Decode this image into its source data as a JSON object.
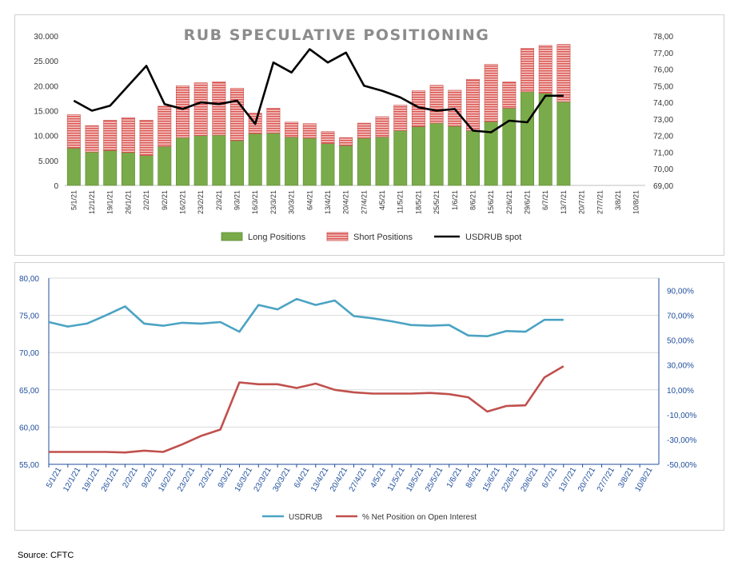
{
  "source": "Source: CFTC",
  "colors": {
    "long": "#7aab4a",
    "short": "#d9534f",
    "usdrub_spot": "#000000",
    "usdrub_blue": "#4ba3c3",
    "net_red": "#c0504d",
    "axis_blue": "#1f4e9c"
  },
  "chart_data": [
    {
      "type": "bar",
      "title": "RUB SPECULATIVE POSITIONING",
      "stacked": true,
      "categories": [
        "5/1/21",
        "12/1/21",
        "19/1/21",
        "26/1/21",
        "2/2/21",
        "9/2/21",
        "16/2/21",
        "23/2/21",
        "2/3/21",
        "9/3/21",
        "16/3/21",
        "23/3/21",
        "30/3/21",
        "6/4/21",
        "13/4/21",
        "20/4/21",
        "27/4/21",
        "4/5/21",
        "11/5/21",
        "18/5/21",
        "25/5/21",
        "1/6/21",
        "8/6/21",
        "15/6/21",
        "22/6/21",
        "29/6/21",
        "6/7/21",
        "13/7/21",
        "20/7/21",
        "27/7/21",
        "3/8/21",
        "10/8/21"
      ],
      "series": [
        {
          "name": "Long Positions",
          "kind": "bar",
          "values": [
            7500,
            6700,
            7000,
            6600,
            6000,
            7800,
            9600,
            10000,
            10100,
            9000,
            10400,
            10500,
            9700,
            9500,
            8400,
            8000,
            9500,
            9700,
            11000,
            11800,
            12500,
            11900,
            11000,
            12800,
            15500,
            18800,
            18500,
            16800,
            null,
            null,
            null,
            null
          ]
        },
        {
          "name": "Short Positions",
          "kind": "bar",
          "values": [
            6700,
            5300,
            6100,
            7000,
            7100,
            8100,
            10400,
            10600,
            10700,
            10500,
            4100,
            5000,
            3000,
            2900,
            2400,
            1600,
            3000,
            4100,
            5100,
            7200,
            7600,
            7200,
            10300,
            11500,
            5300,
            8700,
            9600,
            11500,
            null,
            null,
            null,
            null
          ]
        },
        {
          "name": "USDRUB spot",
          "kind": "line",
          "axis": "right",
          "values": [
            74.1,
            73.5,
            73.8,
            75.0,
            76.2,
            73.9,
            73.6,
            74.0,
            73.9,
            74.1,
            72.7,
            76.4,
            75.8,
            77.2,
            76.4,
            77.0,
            75.0,
            74.7,
            74.3,
            73.7,
            73.5,
            73.6,
            72.3,
            72.2,
            72.9,
            72.8,
            74.4,
            74.4,
            null,
            null,
            null,
            null
          ]
        }
      ],
      "y_left": {
        "ticks": [
          "0",
          "5.000",
          "10.000",
          "15.000",
          "20.000",
          "25.000",
          "30.000"
        ],
        "range": [
          0,
          30000
        ]
      },
      "y_right": {
        "ticks": [
          "69,00",
          "70,00",
          "71,00",
          "72,00",
          "73,00",
          "74,00",
          "75,00",
          "76,00",
          "77,00",
          "78,00"
        ],
        "range": [
          69,
          78
        ]
      },
      "legend_position": "bottom-center"
    },
    {
      "type": "line",
      "title": "",
      "categories": [
        "5/1/21",
        "12/1/21",
        "19/1/21",
        "26/1/21",
        "2/2/21",
        "9/2/21",
        "16/2/21",
        "23/2/21",
        "2/3/21",
        "9/3/21",
        "16/3/21",
        "23/3/21",
        "30/3/21",
        "6/4/21",
        "13/4/21",
        "20/4/21",
        "27/4/21",
        "4/5/21",
        "11/5/21",
        "18/5/21",
        "25/5/21",
        "1/6/21",
        "8/6/21",
        "15/6/21",
        "22/6/21",
        "29/6/21",
        "6/7/21",
        "13/7/21",
        "20/7/21",
        "27/7/21",
        "3/8/21",
        "10/8/21"
      ],
      "series": [
        {
          "name": "USDRUB",
          "axis": "left",
          "values": [
            74.1,
            73.5,
            73.9,
            75.0,
            76.2,
            73.9,
            73.6,
            74.0,
            73.9,
            74.1,
            72.8,
            76.4,
            75.8,
            77.2,
            76.4,
            77.0,
            74.9,
            74.6,
            74.2,
            73.7,
            73.6,
            73.7,
            72.3,
            72.2,
            72.9,
            72.8,
            74.4,
            74.4,
            null,
            null,
            null,
            null
          ]
        },
        {
          "name": "% Net Position on Open Interest",
          "axis": "right",
          "values": [
            -40,
            -40,
            -40,
            -40,
            -40.5,
            -39,
            -40,
            -34,
            -27,
            -22,
            16,
            14.5,
            14.5,
            11.5,
            15,
            10,
            8,
            7,
            7,
            7,
            7.5,
            6.5,
            4,
            -7.5,
            -3,
            -2.5,
            20,
            29,
            null,
            null,
            null,
            null
          ]
        }
      ],
      "y_left": {
        "ticks": [
          "55,00",
          "60,00",
          "65,00",
          "70,00",
          "75,00",
          "80,00"
        ],
        "range": [
          55,
          80
        ]
      },
      "y_right": {
        "ticks": [
          "-50,00%",
          "-30,00%",
          "-10,00%",
          "10,00%",
          "30,00%",
          "50,00%",
          "70,00%",
          "90,00%"
        ],
        "range": [
          -50,
          100
        ]
      },
      "grid": true,
      "legend_position": "bottom-center"
    }
  ]
}
